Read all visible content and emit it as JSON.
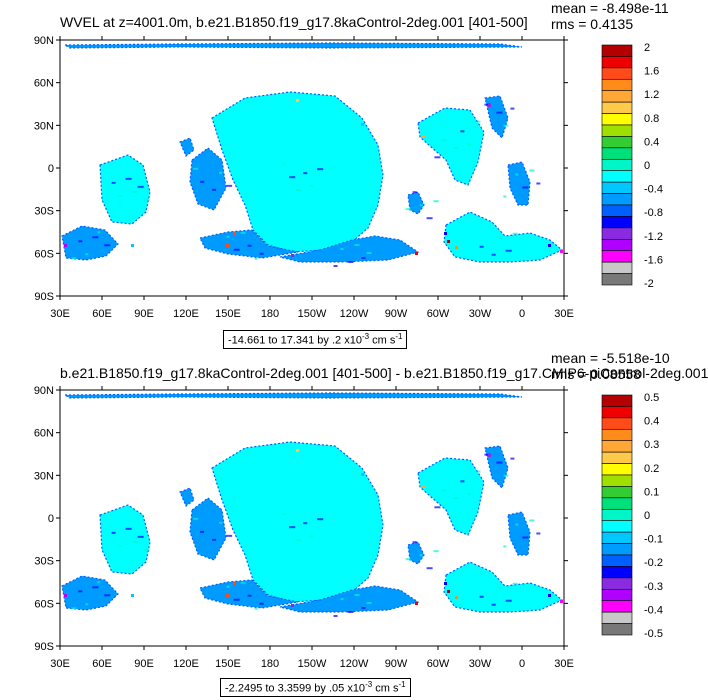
{
  "chart_data": [
    {
      "type": "heatmap",
      "title": "WVEL at z=4001.0m, b.e21.B1850.f19_g17.8kaControl-2deg.001 [401-500]",
      "stats": {
        "mean": "mean = -8.498e-11",
        "rms": "rms = 0.4135"
      },
      "range_label": {
        "text": "-14.661 to 17.341 by .2 x10",
        "exp": "-3",
        "unit": " cm s",
        "unit_exp": "-1"
      },
      "x_ticks": [
        "30E",
        "60E",
        "90E",
        "120E",
        "150E",
        "180",
        "150W",
        "120W",
        "90W",
        "60W",
        "30W",
        "0",
        "30E"
      ],
      "y_ticks": [
        "90N",
        "60N",
        "30N",
        "0",
        "30S",
        "60S",
        "90S"
      ],
      "colorbar": {
        "labels": [
          "2",
          "1.6",
          "1.2",
          "0.8",
          "0.4",
          "0",
          "-0.4",
          "-0.8",
          "-1.2",
          "-1.6",
          "-2"
        ],
        "colors": [
          "#b40000",
          "#ee0000",
          "#ff4a1a",
          "#ff8c1a",
          "#ffa838",
          "#ffc94a",
          "#ffff00",
          "#a0e000",
          "#33cc33",
          "#00e07a",
          "#00f5c8",
          "#00ffff",
          "#00c8ff",
          "#009bff",
          "#0060ff",
          "#0000ff",
          "#8a2be2",
          "#b000ff",
          "#ff00ff",
          "#c8c8c8",
          "#787878"
        ]
      }
    },
    {
      "type": "heatmap",
      "title": "b.e21.B1850.f19_g17.8kaControl-2deg.001 [401-500] - b.e21.B1850.f19_g17.CMIP6-piControl-2deg.001",
      "stats": {
        "mean": "mean = -5.518e-10",
        "rms": "rms = 0.08558"
      },
      "range_label": {
        "text": "-2.2495 to 3.3599 by .05 x10",
        "exp": "-3",
        "unit": " cm s",
        "unit_exp": "-1"
      },
      "x_ticks": [
        "30E",
        "60E",
        "90E",
        "120E",
        "150E",
        "180",
        "150W",
        "120W",
        "90W",
        "60W",
        "30W",
        "0",
        "30E"
      ],
      "y_ticks": [
        "90N",
        "60N",
        "30N",
        "0",
        "30S",
        "60S",
        "90S"
      ],
      "colorbar": {
        "labels": [
          "0.5",
          "0.4",
          "0.3",
          "0.2",
          "0.1",
          "0",
          "-0.1",
          "-0.2",
          "-0.3",
          "-0.4",
          "-0.5"
        ],
        "colors": [
          "#b40000",
          "#ee0000",
          "#ff4a1a",
          "#ff8c1a",
          "#ffa838",
          "#ffc94a",
          "#ffff00",
          "#a0e000",
          "#33cc33",
          "#00e07a",
          "#00f5c8",
          "#00ffff",
          "#00c8ff",
          "#009bff",
          "#0060ff",
          "#0000ff",
          "#8a2be2",
          "#b000ff",
          "#ff00ff",
          "#c8c8c8",
          "#787878"
        ]
      }
    }
  ]
}
